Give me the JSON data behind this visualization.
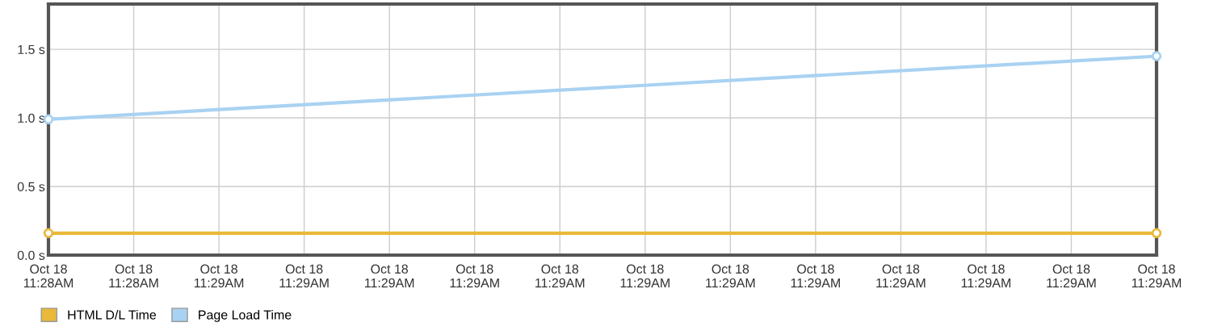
{
  "chart_data": {
    "type": "line",
    "categories": [
      "Oct 18\n11:28AM",
      "Oct 18\n11:28AM",
      "Oct 18\n11:29AM",
      "Oct 18\n11:29AM",
      "Oct 18\n11:29AM",
      "Oct 18\n11:29AM",
      "Oct 18\n11:29AM",
      "Oct 18\n11:29AM",
      "Oct 18\n11:29AM",
      "Oct 18\n11:29AM",
      "Oct 18\n11:29AM",
      "Oct 18\n11:29AM",
      "Oct 18\n11:29AM",
      "Oct 18\n11:29AM"
    ],
    "ylim": [
      0,
      1.83
    ],
    "yticks": [
      {
        "value": 0,
        "label": "0.0 s"
      },
      {
        "value": 0.5,
        "label": "0.5 s"
      },
      {
        "value": 1.0,
        "label": "1.0 s"
      },
      {
        "value": 1.5,
        "label": "1.5 s"
      }
    ],
    "grid": true,
    "legend": "bottom left",
    "marker": "circle",
    "line_style": "solid",
    "series": [
      {
        "name": "HTML D/L Time",
        "color": "#eab93a",
        "values": [
          0.16,
          null,
          null,
          null,
          null,
          null,
          null,
          null,
          null,
          null,
          null,
          null,
          null,
          0.16
        ]
      },
      {
        "name": "Page Load Time",
        "color": "#a9d2f2",
        "values": [
          0.99,
          null,
          null,
          null,
          null,
          null,
          null,
          null,
          null,
          null,
          null,
          null,
          null,
          1.45
        ]
      }
    ]
  }
}
